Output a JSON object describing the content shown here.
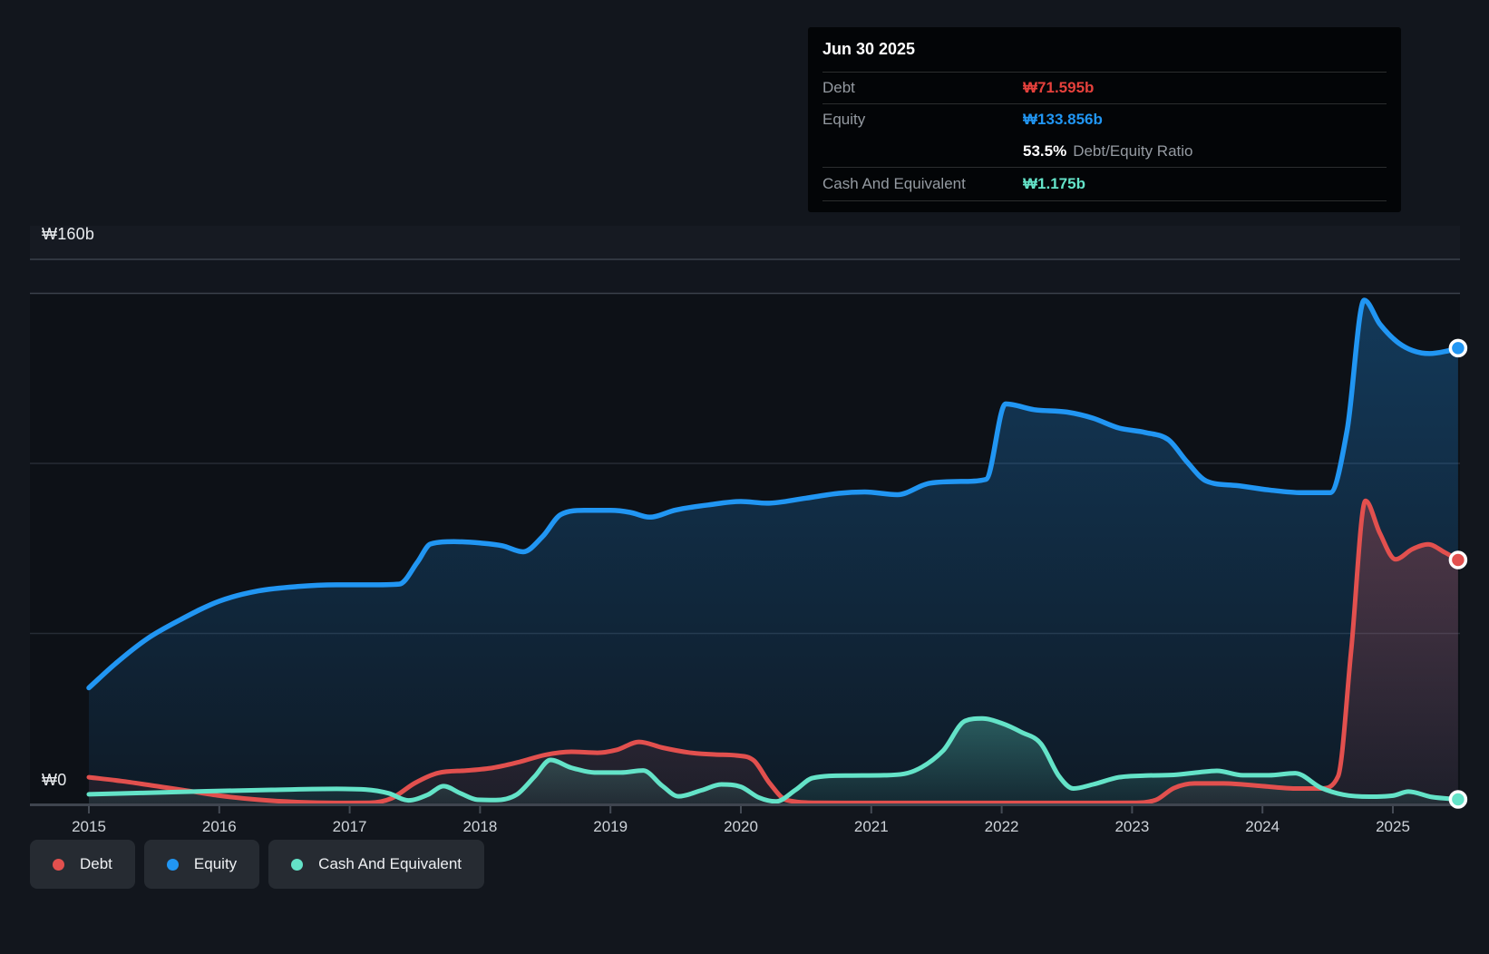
{
  "y_axis": {
    "top_label": "₩160b",
    "zero_label": "₩0"
  },
  "tooltip": {
    "title": "Jun 30 2025",
    "rows": [
      {
        "label": "Debt",
        "value": "₩71.595b",
        "color": "#e6413c"
      },
      {
        "label": "Equity",
        "value": "₩133.856b",
        "color": "#2196f3"
      },
      {
        "label": "Cash And Equivalent",
        "value": "₩1.175b",
        "color": "#64e3c8"
      }
    ],
    "ratio_value": "53.5%",
    "ratio_label": "Debt/Equity Ratio"
  },
  "legend": {
    "items": [
      {
        "label": "Debt",
        "color": "#e2504e"
      },
      {
        "label": "Equity",
        "color": "#2196f3"
      },
      {
        "label": "Cash And Equivalent",
        "color": "#64e3c8"
      }
    ]
  },
  "chart_data": {
    "type": "area",
    "title": "Debt to Equity History",
    "unit": "₩ billions",
    "x_domain": [
      2015.0,
      2025.5
    ],
    "y_domain": [
      0,
      160
    ],
    "x_ticks": [
      2015,
      2016,
      2017,
      2018,
      2019,
      2020,
      2021,
      2022,
      2023,
      2024,
      2025
    ],
    "y_gridlines": [
      160,
      150,
      100,
      50
    ],
    "grid_on": true,
    "legend_position": "bottom-left",
    "last_point_date": "Jun 30 2025",
    "series": [
      {
        "name": "Equity",
        "color": "#2196f3",
        "end_value": 133.856,
        "points": [
          [
            2015.0,
            34
          ],
          [
            2015.2,
            41
          ],
          [
            2015.45,
            48.5
          ],
          [
            2015.7,
            54
          ],
          [
            2016.0,
            59.5
          ],
          [
            2016.3,
            62.5
          ],
          [
            2016.6,
            63.8
          ],
          [
            2016.9,
            64.3
          ],
          [
            2017.15,
            64.3
          ],
          [
            2017.38,
            64.5
          ],
          [
            2017.52,
            71
          ],
          [
            2017.62,
            76.3
          ],
          [
            2017.8,
            77
          ],
          [
            2018.0,
            76.6
          ],
          [
            2018.17,
            75.8
          ],
          [
            2018.33,
            74
          ],
          [
            2018.48,
            78.5
          ],
          [
            2018.62,
            85
          ],
          [
            2018.8,
            86.2
          ],
          [
            2019.0,
            86.2
          ],
          [
            2019.15,
            85.6
          ],
          [
            2019.3,
            84.2
          ],
          [
            2019.5,
            86.3
          ],
          [
            2019.75,
            87.8
          ],
          [
            2020.0,
            88.8
          ],
          [
            2020.2,
            88.3
          ],
          [
            2020.5,
            89.8
          ],
          [
            2020.75,
            91.2
          ],
          [
            2020.95,
            91.6
          ],
          [
            2021.2,
            90.8
          ],
          [
            2021.45,
            94.2
          ],
          [
            2021.7,
            94.7
          ],
          [
            2021.88,
            95.3
          ],
          [
            2022.03,
            117.5
          ],
          [
            2022.25,
            115.8
          ],
          [
            2022.5,
            115.1
          ],
          [
            2022.7,
            113.3
          ],
          [
            2022.9,
            110.4
          ],
          [
            2023.1,
            109.1
          ],
          [
            2023.28,
            106.9
          ],
          [
            2023.42,
            100.5
          ],
          [
            2023.57,
            94.8
          ],
          [
            2023.8,
            93.5
          ],
          [
            2024.05,
            92.2
          ],
          [
            2024.3,
            91.4
          ],
          [
            2024.52,
            91.4
          ],
          [
            2024.65,
            110
          ],
          [
            2024.78,
            148
          ],
          [
            2024.9,
            141
          ],
          [
            2025.03,
            135.8
          ],
          [
            2025.15,
            133.2
          ],
          [
            2025.28,
            132.3
          ],
          [
            2025.4,
            132.9
          ],
          [
            2025.5,
            133.9
          ]
        ]
      },
      {
        "name": "Debt",
        "color": "#e2504e",
        "end_value": 71.595,
        "points": [
          [
            2015.0,
            7.7
          ],
          [
            2015.25,
            6.6
          ],
          [
            2015.5,
            5.2
          ],
          [
            2015.75,
            3.8
          ],
          [
            2016.0,
            2.3
          ],
          [
            2016.3,
            1.1
          ],
          [
            2016.6,
            0.4
          ],
          [
            2016.9,
            0.15
          ],
          [
            2017.15,
            0.2
          ],
          [
            2017.32,
            1.5
          ],
          [
            2017.5,
            6
          ],
          [
            2017.68,
            9
          ],
          [
            2017.9,
            9.7
          ],
          [
            2018.1,
            10.5
          ],
          [
            2018.3,
            12.2
          ],
          [
            2018.5,
            14.3
          ],
          [
            2018.7,
            15.2
          ],
          [
            2018.9,
            14.9
          ],
          [
            2019.05,
            15.8
          ],
          [
            2019.22,
            18.1
          ],
          [
            2019.4,
            16.4
          ],
          [
            2019.6,
            15
          ],
          [
            2019.8,
            14.4
          ],
          [
            2019.97,
            14.1
          ],
          [
            2020.1,
            12.6
          ],
          [
            2020.22,
            6
          ],
          [
            2020.35,
            1
          ],
          [
            2020.6,
            0.2
          ],
          [
            2021.0,
            0.15
          ],
          [
            2021.5,
            0.15
          ],
          [
            2022.0,
            0.15
          ],
          [
            2022.5,
            0.15
          ],
          [
            2023.0,
            0.2
          ],
          [
            2023.18,
            1
          ],
          [
            2023.32,
            4.5
          ],
          [
            2023.48,
            5.9
          ],
          [
            2023.7,
            5.9
          ],
          [
            2024.0,
            5.1
          ],
          [
            2024.25,
            4.4
          ],
          [
            2024.45,
            4.4
          ],
          [
            2024.58,
            8
          ],
          [
            2024.68,
            45
          ],
          [
            2024.79,
            89
          ],
          [
            2024.9,
            79.5
          ],
          [
            2025.02,
            71.8
          ],
          [
            2025.15,
            74.8
          ],
          [
            2025.27,
            76.2
          ],
          [
            2025.4,
            73.8
          ],
          [
            2025.5,
            71.6
          ]
        ]
      },
      {
        "name": "Cash And Equivalent",
        "color": "#64e3c8",
        "end_value": 1.175,
        "points": [
          [
            2015.0,
            2.7
          ],
          [
            2015.4,
            3.1
          ],
          [
            2015.9,
            3.6
          ],
          [
            2016.4,
            4.0
          ],
          [
            2016.9,
            4.3
          ],
          [
            2017.12,
            4.1
          ],
          [
            2017.3,
            3.0
          ],
          [
            2017.45,
            0.9
          ],
          [
            2017.6,
            2.6
          ],
          [
            2017.72,
            5.1
          ],
          [
            2017.85,
            3.0
          ],
          [
            2017.98,
            1.1
          ],
          [
            2018.12,
            1.0
          ],
          [
            2018.28,
            2.6
          ],
          [
            2018.42,
            8
          ],
          [
            2018.54,
            12.8
          ],
          [
            2018.7,
            10.5
          ],
          [
            2018.9,
            9.1
          ],
          [
            2019.08,
            9.1
          ],
          [
            2019.25,
            9.7
          ],
          [
            2019.4,
            5.1
          ],
          [
            2019.52,
            2.1
          ],
          [
            2019.7,
            3.9
          ],
          [
            2019.85,
            5.6
          ],
          [
            2020.0,
            4.9
          ],
          [
            2020.14,
            1.7
          ],
          [
            2020.27,
            0.6
          ],
          [
            2020.42,
            4
          ],
          [
            2020.55,
            7.5
          ],
          [
            2020.8,
            8.2
          ],
          [
            2021.1,
            8.3
          ],
          [
            2021.33,
            9.6
          ],
          [
            2021.55,
            15.5
          ],
          [
            2021.72,
            24.3
          ],
          [
            2021.85,
            25
          ],
          [
            2022.0,
            23.6
          ],
          [
            2022.15,
            21
          ],
          [
            2022.3,
            17.6
          ],
          [
            2022.44,
            8
          ],
          [
            2022.55,
            4.4
          ],
          [
            2022.7,
            5.6
          ],
          [
            2022.9,
            7.7
          ],
          [
            2023.1,
            8.2
          ],
          [
            2023.32,
            8.4
          ],
          [
            2023.52,
            9.2
          ],
          [
            2023.65,
            9.6
          ],
          [
            2023.85,
            8.3
          ],
          [
            2024.05,
            8.3
          ],
          [
            2024.25,
            8.9
          ],
          [
            2024.45,
            4.6
          ],
          [
            2024.62,
            2.6
          ],
          [
            2024.82,
            2.0
          ],
          [
            2025.0,
            2.3
          ],
          [
            2025.12,
            3.5
          ],
          [
            2025.3,
            1.9
          ],
          [
            2025.5,
            1.2
          ]
        ]
      }
    ]
  }
}
